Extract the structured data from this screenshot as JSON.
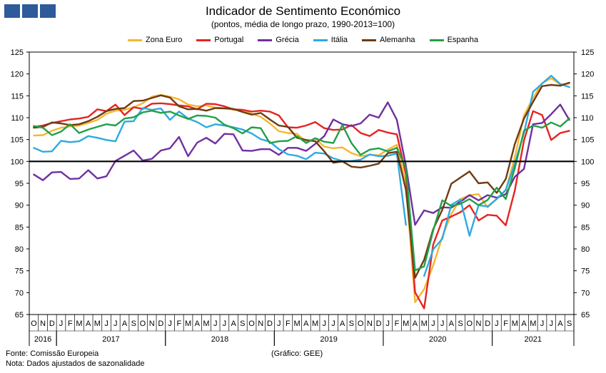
{
  "header": {
    "title": "Indicador de Sentimento Económico",
    "subtitle": "(pontos, média de longo prazo, 1990-2013=100)"
  },
  "logo_colors": [
    "#2e5b9a",
    "#2e5b9a",
    "#2e5b9a"
  ],
  "footer": {
    "source": "Fonte: Comissão Europeia",
    "note": "Nota: Dados ajustados de sazonalidade",
    "credit": "(Gráfico: GEE)"
  },
  "chart_data": {
    "type": "line",
    "x_months": [
      "O",
      "N",
      "D",
      "J",
      "F",
      "M",
      "A",
      "M",
      "J",
      "J",
      "A",
      "S",
      "O",
      "N",
      "D",
      "J",
      "F",
      "M",
      "A",
      "M",
      "J",
      "J",
      "A",
      "S",
      "O",
      "N",
      "D",
      "J",
      "F",
      "M",
      "A",
      "M",
      "J",
      "J",
      "A",
      "S",
      "O",
      "N",
      "D",
      "J",
      "F",
      "M",
      "A",
      "M",
      "J",
      "J",
      "A",
      "S",
      "O",
      "N",
      "D",
      "J",
      "F",
      "M",
      "A",
      "M",
      "J",
      "J",
      "A",
      "S"
    ],
    "x_years": [
      {
        "label": "2016",
        "start": 0,
        "count": 3
      },
      {
        "label": "2017",
        "start": 3,
        "count": 12
      },
      {
        "label": "2018",
        "start": 15,
        "count": 12
      },
      {
        "label": "2019",
        "start": 27,
        "count": 12
      },
      {
        "label": "2020",
        "start": 39,
        "count": 12
      },
      {
        "label": "2021",
        "start": 51,
        "count": 9
      }
    ],
    "ylim": [
      65,
      125
    ],
    "yticks": [
      65,
      70,
      75,
      80,
      85,
      90,
      95,
      100,
      105,
      110,
      115,
      120,
      125
    ],
    "reference_line": 100,
    "series": [
      {
        "name": "Zona Euro",
        "color": "#f5b731",
        "values": [
          105.9,
          106.0,
          107.0,
          107.7,
          108.0,
          108.2,
          108.8,
          109.5,
          110.9,
          111.6,
          111.8,
          112.4,
          113.3,
          114.8,
          115.2,
          114.8,
          114.2,
          113.0,
          112.6,
          112.8,
          112.3,
          112.2,
          111.8,
          111.7,
          110.9,
          110.2,
          108.7,
          106.9,
          106.5,
          106.3,
          104.5,
          105.2,
          103.4,
          103.0,
          103.2,
          101.9,
          101.2,
          101.5,
          101.4,
          102.7,
          103.8,
          94.8,
          67.8,
          70.8,
          76.2,
          82.7,
          88.0,
          91.4,
          92.3,
          92.5,
          89.5,
          91.5,
          93.4,
          101.0,
          110.5,
          114.5,
          117.9,
          119.0,
          117.6,
          117.8
        ]
      },
      {
        "name": "Portugal",
        "color": "#e52421",
        "values": [
          107.9,
          108.2,
          108.8,
          109.2,
          109.6,
          109.8,
          110.2,
          111.9,
          111.5,
          113.0,
          110.6,
          112.4,
          112.0,
          113.2,
          113.3,
          113.1,
          112.8,
          112.6,
          111.9,
          113.2,
          113.1,
          112.6,
          111.9,
          111.8,
          111.4,
          111.6,
          111.4,
          110.5,
          107.8,
          107.7,
          108.2,
          109.0,
          107.6,
          107.2,
          107.3,
          108.3,
          106.5,
          105.8,
          107.2,
          106.6,
          106.2,
          97.0,
          70.1,
          66.4,
          81.0,
          86.5,
          87.4,
          88.4,
          90.0,
          86.5,
          87.8,
          87.6,
          85.4,
          93.4,
          104.8,
          111.5,
          110.6,
          104.9,
          106.5,
          107.0
        ]
      },
      {
        "name": "Grécia",
        "color": "#7030a0",
        "values": [
          97.0,
          95.7,
          97.5,
          97.6,
          96.0,
          96.1,
          98.0,
          96.1,
          96.6,
          100.1,
          101.3,
          102.5,
          100.2,
          100.6,
          102.5,
          103.0,
          105.6,
          101.2,
          104.3,
          105.4,
          104.1,
          106.3,
          106.2,
          102.5,
          102.4,
          102.8,
          102.8,
          101.5,
          103.1,
          103.1,
          102.4,
          104.0,
          105.8,
          109.6,
          108.5,
          108.1,
          108.7,
          110.7,
          110.0,
          113.5,
          109.5,
          99.0,
          85.5,
          88.8,
          88.2,
          89.5,
          89.4,
          90.8,
          92.3,
          91.1,
          92.3,
          91.7,
          92.5,
          96.5,
          98.3,
          108.5,
          108.8,
          110.8,
          113.0,
          109.5
        ]
      },
      {
        "name": "Itália",
        "color": "#2eaae1",
        "values": [
          103.1,
          102.2,
          102.3,
          104.7,
          104.4,
          104.6,
          105.8,
          105.4,
          104.9,
          104.6,
          109.1,
          109.2,
          112.2,
          111.8,
          112.1,
          109.5,
          111.4,
          109.8,
          109.0,
          107.8,
          108.5,
          108.2,
          107.8,
          107.3,
          106.4,
          105.1,
          104.5,
          102.8,
          101.6,
          101.3,
          100.5,
          102.0,
          101.8,
          100.7,
          100.1,
          100.1,
          100.4,
          101.6,
          101.2,
          101.3,
          101.8,
          85.5,
          null,
          73.8,
          79.9,
          82.3,
          90.1,
          91.3,
          83.0,
          90.0,
          89.7,
          91.4,
          93.5,
          99.5,
          106.5,
          115.9,
          117.8,
          119.6,
          117.7,
          117.0
        ]
      },
      {
        "name": "Alemanha",
        "color": "#6e3b12",
        "values": [
          107.7,
          107.9,
          108.9,
          108.7,
          108.3,
          108.5,
          109.2,
          110.2,
          111.5,
          112.0,
          112.2,
          113.8,
          113.9,
          114.5,
          115.1,
          114.6,
          112.6,
          111.9,
          112.0,
          111.6,
          112.2,
          112.1,
          112.0,
          111.3,
          110.7,
          111.1,
          109.6,
          108.2,
          107.9,
          105.4,
          104.9,
          104.6,
          102.3,
          99.7,
          100.0,
          98.8,
          98.6,
          99.0,
          99.5,
          101.9,
          102.2,
          93.5,
          73.4,
          77.5,
          84.5,
          88.9,
          94.9,
          96.3,
          97.7,
          95.0,
          95.2,
          92.8,
          96.0,
          104.0,
          109.8,
          113.6,
          117.2,
          117.5,
          117.3,
          118.0
        ]
      },
      {
        "name": "Espanha",
        "color": "#22a048",
        "values": [
          108.1,
          107.7,
          106.0,
          106.8,
          108.5,
          106.5,
          107.3,
          107.9,
          108.5,
          108.2,
          109.8,
          110.1,
          111.2,
          111.6,
          111.1,
          111.4,
          110.5,
          109.7,
          110.5,
          110.4,
          110.0,
          108.4,
          107.6,
          106.4,
          107.8,
          107.6,
          104.2,
          104.6,
          104.7,
          105.8,
          104.2,
          105.3,
          104.5,
          104.2,
          108.3,
          104.2,
          101.5,
          102.7,
          103.0,
          102.3,
          103.1,
          98.5,
          75.1,
          76.0,
          84.2,
          91.1,
          89.8,
          90.3,
          91.4,
          90.0,
          91.2,
          94.0,
          91.4,
          98.5,
          107.0,
          108.2,
          107.7,
          108.9,
          108.0,
          109.8
        ]
      }
    ]
  }
}
